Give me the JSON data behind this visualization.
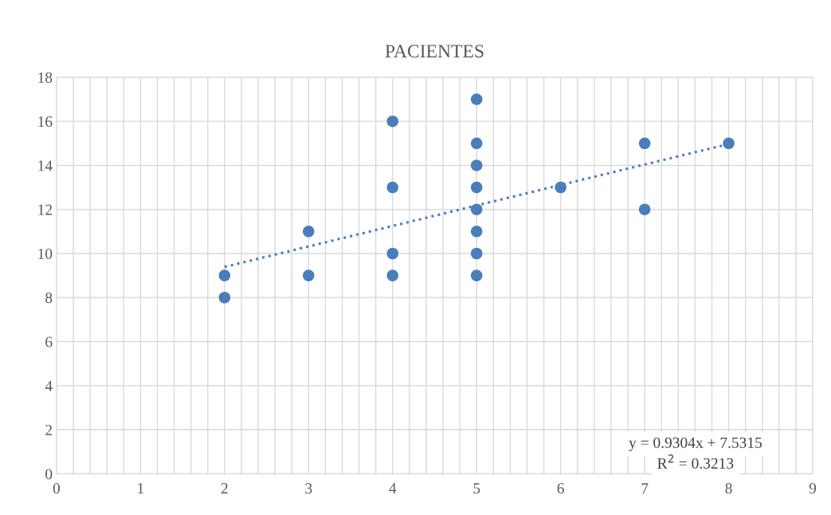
{
  "chart_data": {
    "type": "scatter",
    "title": "PACIENTES",
    "series": [
      {
        "color": "#4a7ebb",
        "marker": "circle",
        "x": [
          2,
          2,
          3,
          3,
          4,
          4,
          4,
          4,
          5,
          5,
          5,
          5,
          5,
          5,
          5,
          5,
          6,
          7,
          7,
          8
        ],
        "values": [
          9,
          8,
          11,
          9,
          16,
          13,
          10,
          9,
          17,
          15,
          14,
          13,
          12,
          11,
          10,
          9,
          13,
          15,
          12,
          15
        ]
      },
      {
        "type": "line",
        "color": "#4a7ebb",
        "marker": "none",
        "line_style": "dotted",
        "x": [
          2,
          8
        ],
        "values": [
          9.39,
          14.97
        ]
      }
    ],
    "xlim": [
      0,
      9
    ],
    "xticks": [
      0,
      {
        "value": 0.2,
        "label": null
      },
      {
        "value": 0.4,
        "label": null
      },
      {
        "value": 0.6,
        "label": null
      },
      {
        "value": 0.8,
        "label": null
      },
      1,
      {
        "value": 1.2,
        "label": null
      },
      {
        "value": 1.4,
        "label": null
      },
      {
        "value": 1.6,
        "label": null
      },
      {
        "value": 1.8,
        "label": null
      },
      2,
      {
        "value": 2.2,
        "label": null
      },
      {
        "value": 2.4,
        "label": null
      },
      {
        "value": 2.6,
        "label": null
      },
      {
        "value": 2.8,
        "label": null
      },
      3,
      {
        "value": 3.2,
        "label": null
      },
      {
        "value": 3.4,
        "label": null
      },
      {
        "value": 3.6,
        "label": null
      },
      {
        "value": 3.8,
        "label": null
      },
      4,
      {
        "value": 4.2,
        "label": null
      },
      {
        "value": 4.4,
        "label": null
      },
      {
        "value": 4.6,
        "label": null
      },
      {
        "value": 4.8,
        "label": null
      },
      5,
      {
        "value": 5.2,
        "label": null
      },
      {
        "value": 5.4,
        "label": null
      },
      {
        "value": 5.6,
        "label": null
      },
      {
        "value": 5.8,
        "label": null
      },
      6,
      {
        "value": 6.2,
        "label": null
      },
      {
        "value": 6.4,
        "label": null
      },
      {
        "value": 6.6,
        "label": null
      },
      {
        "value": 6.8,
        "label": null
      },
      7,
      {
        "value": 7.2,
        "label": null
      },
      {
        "value": 7.4,
        "label": null
      },
      {
        "value": 7.6,
        "label": null
      },
      {
        "value": 7.8,
        "label": null
      },
      8,
      {
        "value": 8.2,
        "label": null
      },
      {
        "value": 8.4,
        "label": null
      },
      {
        "value": 8.6,
        "label": null
      },
      {
        "value": 8.8,
        "label": null
      },
      9
    ],
    "ylim": [
      0,
      18
    ],
    "yticks": [
      0,
      2,
      4,
      6,
      8,
      10,
      12,
      14,
      16,
      18
    ],
    "grid": true,
    "legend": false,
    "annotations": [
      "y = 0.9304x + 7.5315",
      "R$^{2}$ = 0.3213"
    ]
  }
}
